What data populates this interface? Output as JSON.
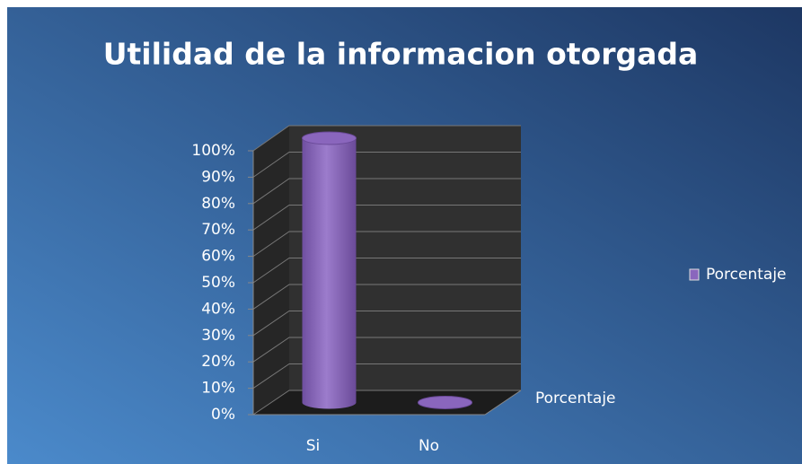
{
  "chart_data": {
    "type": "bar3d",
    "title": "Utilidad de la informacion otorgada",
    "categories": [
      "Si",
      "No"
    ],
    "series": [
      {
        "name": "Porcentaje",
        "color": "#8a66bd",
        "values": [
          100,
          0
        ]
      }
    ],
    "ylim": [
      0,
      100
    ],
    "yticks": [
      {
        "value": 0,
        "label": "0%"
      },
      {
        "value": 10,
        "label": "10%"
      },
      {
        "value": 20,
        "label": "20%"
      },
      {
        "value": 30,
        "label": "30%"
      },
      {
        "value": 40,
        "label": "40%"
      },
      {
        "value": 50,
        "label": "50%"
      },
      {
        "value": 60,
        "label": "60%"
      },
      {
        "value": 70,
        "label": "70%"
      },
      {
        "value": 80,
        "label": "80%"
      },
      {
        "value": 90,
        "label": "90%"
      },
      {
        "value": 100,
        "label": "100%"
      }
    ],
    "grid": true,
    "legend": "right"
  }
}
